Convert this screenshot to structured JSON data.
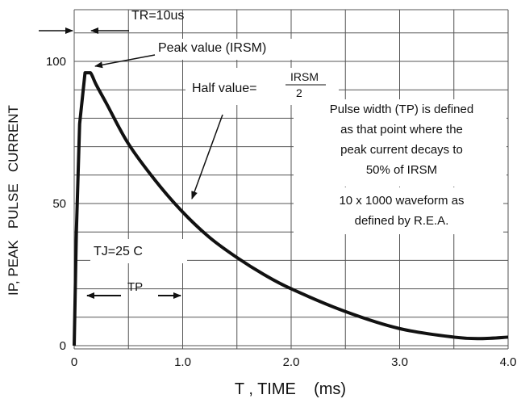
{
  "chart_data": {
    "type": "line",
    "xlabel": "T , TIME    (ms)",
    "ylabel": "IP, PEAK   PULSE   CURRENT",
    "xlim": [
      0,
      4.0
    ],
    "ylim": [
      0,
      100
    ],
    "x_ticks": [
      "0",
      "1.0",
      "2.0",
      "3.0",
      "4.0"
    ],
    "y_ticks": [
      "0",
      "50",
      "100"
    ],
    "grid": "on",
    "series": [
      {
        "x": [
          0,
          0.02,
          0.05,
          0.1,
          0.15,
          0.2,
          0.3,
          0.5,
          0.75,
          1.0,
          1.25,
          1.5,
          1.75,
          2.0,
          2.5,
          3.0,
          3.5,
          3.75,
          4.0
        ],
        "y": [
          0,
          40,
          78,
          96,
          96,
          92,
          85,
          71,
          58,
          47,
          38,
          31,
          25,
          20,
          12,
          6,
          3,
          2.5,
          3
        ]
      }
    ],
    "annotations": {
      "tr": "TR=10us",
      "peak": "Peak value (IRSM)",
      "half_prefix": "Half value=",
      "half_num": "IRSM",
      "half_den": "2",
      "pw_lines": [
        "Pulse width (TP) is defined",
        "as that point where the",
        "peak current decays to",
        "50% of IRSM"
      ],
      "wave_lines": [
        "10 x 1000 waveform as",
        "defined by R.E.A."
      ],
      "tj": "TJ=25 C",
      "tp": "TP"
    }
  }
}
